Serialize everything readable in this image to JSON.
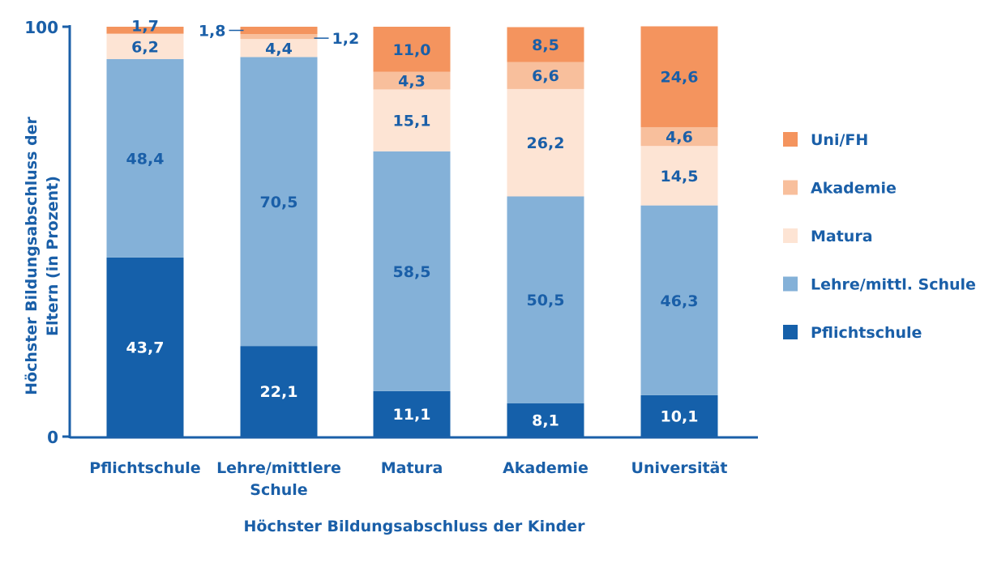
{
  "chart_data": {
    "type": "bar",
    "stacked": true,
    "categories": [
      "Pflichtschule",
      "Lehre/mittlere Schule",
      "Matura",
      "Akademie",
      "Universität"
    ],
    "category_lines": [
      [
        "Pflichtschule"
      ],
      [
        "Lehre/mittlere",
        "Schule"
      ],
      [
        "Matura"
      ],
      [
        "Akademie"
      ],
      [
        "Universität"
      ]
    ],
    "series": [
      {
        "name": "Pflichtschule",
        "color": "#1560aa",
        "label_color": "#ffffff",
        "values": [
          43.7,
          22.1,
          11.1,
          8.1,
          10.1
        ],
        "labels": [
          "43,7",
          "22,1",
          "11,1",
          "8,1",
          "10,1"
        ]
      },
      {
        "name": "Lehre/mittl. Schule",
        "color": "#84b1d8",
        "label_color": "#1a5fa8",
        "values": [
          48.4,
          70.5,
          58.5,
          50.5,
          46.3
        ],
        "labels": [
          "48,4",
          "70,5",
          "58,5",
          "50,5",
          "46,3"
        ]
      },
      {
        "name": "Matura",
        "color": "#fde4d4",
        "label_color": "#1a5fa8",
        "values": [
          6.2,
          4.4,
          15.1,
          26.2,
          14.5
        ],
        "labels": [
          "6,2",
          "4,4",
          "15,1",
          "26,2",
          "14,5"
        ]
      },
      {
        "name": "Akademie",
        "color": "#f8bf9c",
        "label_color": "#1a5fa8",
        "values": [
          0,
          1.2,
          4.3,
          6.6,
          4.6
        ],
        "labels": [
          "",
          "1,2",
          "4,3",
          "6,6",
          "4,6"
        ]
      },
      {
        "name": "Uni/FH",
        "color": "#f4945e",
        "label_color": "#1a5fa8",
        "values": [
          1.7,
          1.8,
          11.0,
          8.5,
          24.6
        ],
        "labels": [
          "1,7",
          "1,8",
          "11,0",
          "8,5",
          "24,6"
        ]
      }
    ],
    "xlabel": "Höchster Bildungsabschluss der Kinder",
    "ylabel_lines": [
      "Höchster Bildungsabschluss der",
      "Eltern (in Prozent)"
    ],
    "ylim": [
      0,
      100
    ],
    "yticks": [
      0,
      100
    ],
    "ytick_labels": [
      "0",
      "100"
    ],
    "legend_position": "right",
    "legend_order": [
      4,
      3,
      2,
      1,
      0
    ],
    "grid": false
  }
}
